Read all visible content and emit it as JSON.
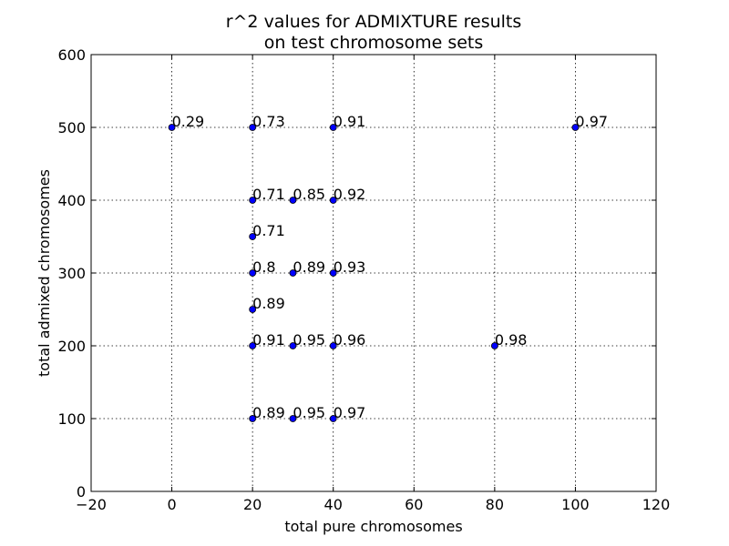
{
  "chart_data": {
    "type": "scatter",
    "title": [
      "r^2 values for ADMIXTURE results",
      "on test chromosome sets"
    ],
    "xlabel": "total pure chromosomes",
    "ylabel": "total admixed chromosomes",
    "xlim": [
      -20,
      120
    ],
    "ylim": [
      0,
      600
    ],
    "xticks": [
      -20,
      0,
      20,
      40,
      60,
      80,
      100,
      120
    ],
    "xtick_labels": [
      "−20",
      "0",
      "20",
      "40",
      "60",
      "80",
      "100",
      "120"
    ],
    "yticks": [
      0,
      100,
      200,
      300,
      400,
      500,
      600
    ],
    "ytick_labels": [
      "0",
      "100",
      "200",
      "300",
      "400",
      "500",
      "600"
    ],
    "grid": true,
    "marker_color": "#0000ff",
    "points": [
      {
        "x": 0,
        "y": 500,
        "label": "0.29"
      },
      {
        "x": 20,
        "y": 500,
        "label": "0.73"
      },
      {
        "x": 40,
        "y": 500,
        "label": "0.91"
      },
      {
        "x": 100,
        "y": 500,
        "label": "0.97"
      },
      {
        "x": 20,
        "y": 400,
        "label": "0.71"
      },
      {
        "x": 30,
        "y": 400,
        "label": "0.85"
      },
      {
        "x": 40,
        "y": 400,
        "label": "0.92"
      },
      {
        "x": 20,
        "y": 350,
        "label": "0.71"
      },
      {
        "x": 20,
        "y": 300,
        "label": "0.8"
      },
      {
        "x": 30,
        "y": 300,
        "label": "0.89"
      },
      {
        "x": 40,
        "y": 300,
        "label": "0.93"
      },
      {
        "x": 20,
        "y": 250,
        "label": "0.89"
      },
      {
        "x": 20,
        "y": 200,
        "label": "0.91"
      },
      {
        "x": 30,
        "y": 200,
        "label": "0.95"
      },
      {
        "x": 40,
        "y": 200,
        "label": "0.96"
      },
      {
        "x": 80,
        "y": 200,
        "label": "0.98"
      },
      {
        "x": 20,
        "y": 100,
        "label": "0.89"
      },
      {
        "x": 30,
        "y": 100,
        "label": "0.95"
      },
      {
        "x": 40,
        "y": 100,
        "label": "0.97"
      }
    ]
  }
}
